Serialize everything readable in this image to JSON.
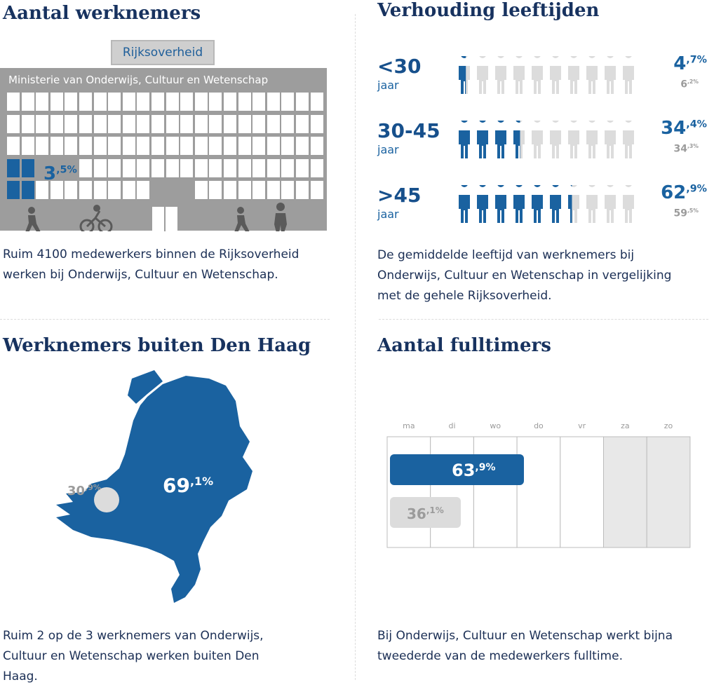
{
  "sections": {
    "employees": {
      "title": "Aantal werknemers",
      "sign": "Rijksoverheid",
      "building_name": "Ministerie van Onderwijs, Cultuur en Wetenschap",
      "share_whole": "3",
      "share_frac": ",5%",
      "caption": "Ruim 4100 medewerkers binnen de Rijksoverheid werken bij Onderwijs, Cultuur en Wetenschap.",
      "share_value": 3.5
    },
    "ages": {
      "title": "Verhouding leeftijden",
      "caption": "De gemiddelde leeftijd van werknemers bij Onderwijs, Cultuur en Wetenschap in vergelijking met de gehele Rijksoverheid.",
      "rows": [
        {
          "label": "<30",
          "sub": "jaar",
          "pct_whole": "4",
          "pct_frac": ",7%",
          "ref_whole": "6",
          "ref_frac": ",2%"
        },
        {
          "label": "30-45",
          "sub": "jaar",
          "pct_whole": "34",
          "pct_frac": ",4%",
          "ref_whole": "34",
          "ref_frac": ",3%"
        },
        {
          "label": ">45",
          "sub": "jaar",
          "pct_whole": "62",
          "pct_frac": ",9%",
          "ref_whole": "59",
          "ref_frac": ",5%"
        }
      ]
    },
    "outside": {
      "title": "Werknemers buiten Den Haag",
      "in_whole": "30",
      "in_frac": ",9%",
      "out_whole": "69",
      "out_frac": ",1%",
      "caption": "Ruim 2 op de 3 werknemers van Onderwijs, Cultuur en Wetenschap werken buiten Den Haag."
    },
    "fulltime": {
      "title": "Aantal fulltimers",
      "days": [
        "ma",
        "di",
        "wo",
        "do",
        "vr",
        "za",
        "zo"
      ],
      "full_whole": "63",
      "full_frac": ",9%",
      "part_whole": "36",
      "part_frac": ",1%",
      "caption": "Bij Onderwijs, Cultuur en Wetenschap werkt bijna tweederde van de medewerkers fulltime."
    }
  },
  "colors": {
    "blue": "#1a62a0",
    "grey": "#9d9d9d",
    "lightgrey": "#dcdcdc",
    "dark": "#17325f"
  },
  "chart_data": [
    {
      "type": "bar",
      "categories": [
        "Onderwijs, Cultuur en Wetenschap"
      ],
      "values": [
        3.5
      ]
    },
    {
      "type": "bar",
      "categories": [
        "<30",
        "30-45",
        ">45"
      ],
      "series": [
        {
          "values": [
            4.7,
            34.4,
            62.9
          ]
        },
        {
          "values": [
            6.2,
            34.3,
            59.5
          ]
        }
      ]
    },
    {
      "type": "pie",
      "categories": [
        "Den Haag",
        "buiten Den Haag"
      ],
      "values": [
        30.9,
        69.1
      ]
    },
    {
      "type": "bar",
      "categories": [
        "fulltime",
        "parttime"
      ],
      "values": [
        63.9,
        36.1
      ]
    }
  ]
}
